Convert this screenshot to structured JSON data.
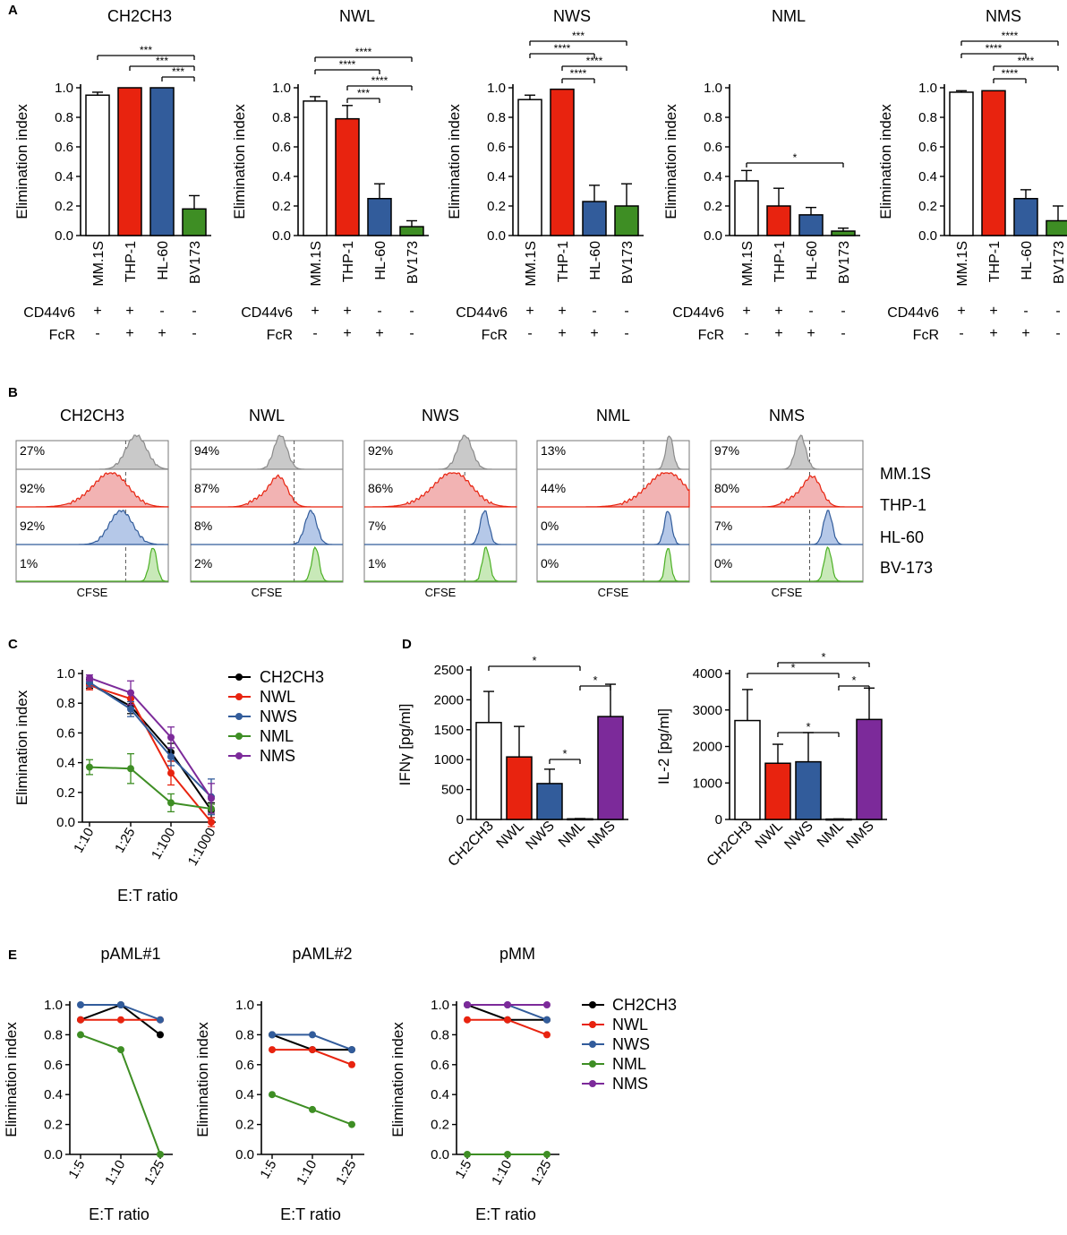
{
  "colors": {
    "white": "#ffffff",
    "red": "#e8230f",
    "blue": "#325c9b",
    "green": "#3e8e24",
    "purple": "#7c2a9a",
    "black": "#000000",
    "grey": "#8c8c8c"
  },
  "panelA": {
    "letter": "A",
    "ylabel": "Elimination index",
    "categories": [
      "MM.1S",
      "THP-1",
      "HL-60",
      "BV173"
    ],
    "row_labels": [
      "CD44v6",
      "FcR"
    ],
    "cd44v6": [
      "+",
      "+",
      "-",
      "-"
    ],
    "fcr": [
      "-",
      "+",
      "+",
      "-"
    ],
    "yticks": [
      "0.0",
      "0.2",
      "0.4",
      "0.6",
      "0.8",
      "1.0"
    ],
    "charts": [
      {
        "title": "CH2CH3",
        "values": [
          0.95,
          1.0,
          1.0,
          0.18
        ],
        "errors": [
          0.02,
          0.0,
          0.0,
          0.09
        ],
        "sig": [
          {
            "from": 0,
            "to": 3,
            "label": "***"
          },
          {
            "from": 1,
            "to": 3,
            "label": "***"
          },
          {
            "from": 2,
            "to": 3,
            "label": "***"
          }
        ]
      },
      {
        "title": "NWL",
        "values": [
          0.91,
          0.79,
          0.25,
          0.06
        ],
        "errors": [
          0.03,
          0.09,
          0.1,
          0.04
        ],
        "sig": [
          {
            "from": 0,
            "to": 3,
            "label": "****"
          },
          {
            "from": 0,
            "to": 2,
            "label": "****"
          },
          {
            "from": 1,
            "to": 3,
            "label": "****"
          },
          {
            "from": 1,
            "to": 2,
            "label": "***"
          }
        ]
      },
      {
        "title": "NWS",
        "values": [
          0.92,
          0.99,
          0.23,
          0.2
        ],
        "errors": [
          0.03,
          0.0,
          0.11,
          0.15
        ],
        "sig": [
          {
            "from": 0,
            "to": 3,
            "label": "***"
          },
          {
            "from": 0,
            "to": 2,
            "label": "****"
          },
          {
            "from": 1,
            "to": 3,
            "label": "****"
          },
          {
            "from": 1,
            "to": 2,
            "label": "****"
          }
        ]
      },
      {
        "title": "NML",
        "values": [
          0.37,
          0.2,
          0.14,
          0.03
        ],
        "errors": [
          0.07,
          0.12,
          0.05,
          0.02
        ],
        "sig": [
          {
            "from": 0,
            "to": 3,
            "label": "*"
          }
        ]
      },
      {
        "title": "NMS",
        "values": [
          0.97,
          0.98,
          0.25,
          0.1
        ],
        "errors": [
          0.01,
          0.0,
          0.06,
          0.1
        ],
        "sig": [
          {
            "from": 0,
            "to": 3,
            "label": "****"
          },
          {
            "from": 0,
            "to": 2,
            "label": "****"
          },
          {
            "from": 1,
            "to": 3,
            "label": "****"
          },
          {
            "from": 1,
            "to": 2,
            "label": "****"
          }
        ]
      }
    ]
  },
  "panelB": {
    "letter": "B",
    "xlabel": "CFSE",
    "cell_lines": [
      "MM.1S",
      "THP-1",
      "HL-60",
      "BV-173"
    ],
    "titles": [
      "CH2CH3",
      "NWL",
      "NWS",
      "NML",
      "NMS"
    ],
    "percents": [
      [
        "27%",
        "92%",
        "92%",
        "1%"
      ],
      [
        "94%",
        "87%",
        "8%",
        "2%"
      ],
      [
        "92%",
        "86%",
        "7%",
        "1%"
      ],
      [
        "13%",
        "44%",
        "0%",
        "0%"
      ],
      [
        "97%",
        "80%",
        "7%",
        "0%"
      ]
    ]
  },
  "chart_data": [
    {
      "type": "line",
      "title": "C",
      "xlabel": "E:T ratio",
      "ylabel": "Elimination index",
      "categories": [
        "1:10",
        "1:25",
        "1:100",
        "1:1000"
      ],
      "ylim": [
        0,
        1.0
      ],
      "yticks": [
        "0.0",
        "0.2",
        "0.4",
        "0.6",
        "0.8",
        "1.0"
      ],
      "series": [
        {
          "name": "CH2CH3",
          "values": [
            0.93,
            0.78,
            0.47,
            0.08
          ],
          "errors": [
            0.03,
            0.05,
            0.06,
            0.05
          ]
        },
        {
          "name": "NWL",
          "values": [
            0.92,
            0.83,
            0.33,
            0.0
          ],
          "errors": [
            0.03,
            0.04,
            0.08,
            0.03
          ]
        },
        {
          "name": "NWS",
          "values": [
            0.94,
            0.76,
            0.44,
            0.17
          ],
          "errors": [
            0.03,
            0.05,
            0.06,
            0.12
          ]
        },
        {
          "name": "NML",
          "values": [
            0.37,
            0.36,
            0.13,
            0.09
          ],
          "errors": [
            0.05,
            0.1,
            0.06,
            0.03
          ]
        },
        {
          "name": "NMS",
          "values": [
            0.97,
            0.87,
            0.57,
            0.16
          ],
          "errors": [
            0.02,
            0.08,
            0.07,
            0.1
          ]
        }
      ]
    },
    {
      "type": "bar",
      "title": "D-IFNg",
      "xlabel": "",
      "ylabel": "IFNγ [pg/ml]",
      "categories": [
        "CH2CH3",
        "NWL",
        "NWS",
        "NML",
        "NMS"
      ],
      "values": [
        1620,
        1045,
        600,
        10,
        1720
      ],
      "errors": [
        520,
        510,
        240,
        5,
        540
      ],
      "ylim": [
        0,
        2500
      ],
      "yticks": [
        "0",
        "500",
        "1000",
        "1500",
        "2000",
        "2500"
      ],
      "sig": [
        {
          "from": 0,
          "to": 3,
          "label": "*"
        },
        {
          "from": 3,
          "to": 4,
          "label": "*"
        },
        {
          "from": 2,
          "to": 3,
          "label": "*"
        }
      ]
    },
    {
      "type": "bar",
      "title": "D-IL2",
      "xlabel": "",
      "ylabel": "IL-2 [pg/ml]",
      "categories": [
        "CH2CH3",
        "NWL",
        "NWS",
        "NML",
        "NMS"
      ],
      "values": [
        2710,
        1540,
        1580,
        10,
        2740
      ],
      "errors": [
        850,
        520,
        800,
        5,
        860
      ],
      "ylim": [
        0,
        4000
      ],
      "yticks": [
        "0",
        "1000",
        "2000",
        "3000",
        "4000"
      ],
      "sig": [
        {
          "from": 1,
          "to": 4,
          "label": "*"
        },
        {
          "from": 0,
          "to": 3,
          "label": "*"
        },
        {
          "from": 3,
          "to": 4,
          "label": "*"
        },
        {
          "from": 1,
          "to": 3,
          "label": "*"
        }
      ]
    },
    {
      "type": "line",
      "title": "pAML#1",
      "xlabel": "E:T ratio",
      "ylabel": "Elimination index",
      "categories": [
        "1:5",
        "1:10",
        "1:25"
      ],
      "ylim": [
        0,
        1.0
      ],
      "yticks": [
        "0.0",
        "0.2",
        "0.4",
        "0.6",
        "0.8",
        "1.0"
      ],
      "series": [
        {
          "name": "CH2CH3",
          "values": [
            0.9,
            1.0,
            0.8
          ]
        },
        {
          "name": "NWL",
          "values": [
            0.9,
            0.9,
            0.9
          ]
        },
        {
          "name": "NWS",
          "values": [
            1.0,
            1.0,
            0.9
          ]
        },
        {
          "name": "NML",
          "values": [
            0.8,
            0.7,
            0.0
          ]
        }
      ]
    },
    {
      "type": "line",
      "title": "pAML#2",
      "xlabel": "E:T ratio",
      "ylabel": "Elimination index",
      "categories": [
        "1:5",
        "1:10",
        "1:25"
      ],
      "ylim": [
        0,
        1.0
      ],
      "yticks": [
        "0.0",
        "0.2",
        "0.4",
        "0.6",
        "0.8",
        "1.0"
      ],
      "series": [
        {
          "name": "CH2CH3",
          "values": [
            0.8,
            0.7,
            0.7
          ]
        },
        {
          "name": "NWL",
          "values": [
            0.7,
            0.7,
            0.6
          ]
        },
        {
          "name": "NWS",
          "values": [
            0.8,
            0.8,
            0.7
          ]
        },
        {
          "name": "NML",
          "values": [
            0.4,
            0.3,
            0.2
          ]
        }
      ]
    },
    {
      "type": "line",
      "title": "pMM",
      "xlabel": "E:T ratio",
      "ylabel": "Elimination index",
      "categories": [
        "1:5",
        "1:10",
        "1:25"
      ],
      "ylim": [
        0,
        1.0
      ],
      "yticks": [
        "0.0",
        "0.2",
        "0.4",
        "0.6",
        "0.8",
        "1.0"
      ],
      "series": [
        {
          "name": "CH2CH3",
          "values": [
            1.0,
            0.9,
            0.9
          ]
        },
        {
          "name": "NWL",
          "values": [
            0.9,
            0.9,
            0.8
          ]
        },
        {
          "name": "NWS",
          "values": [
            1.0,
            1.0,
            0.9
          ]
        },
        {
          "name": "NML",
          "values": [
            0.0,
            0.0,
            0.0
          ]
        },
        {
          "name": "NMS",
          "values": [
            1.0,
            1.0,
            1.0
          ]
        }
      ]
    }
  ],
  "panelC": {
    "letter": "C",
    "legend": [
      "CH2CH3",
      "NWL",
      "NWS",
      "NML",
      "NMS"
    ]
  },
  "panelD": {
    "letter": "D"
  },
  "panelE": {
    "letter": "E",
    "legend": [
      "CH2CH3",
      "NWL",
      "NWS",
      "NML",
      "NMS"
    ]
  }
}
